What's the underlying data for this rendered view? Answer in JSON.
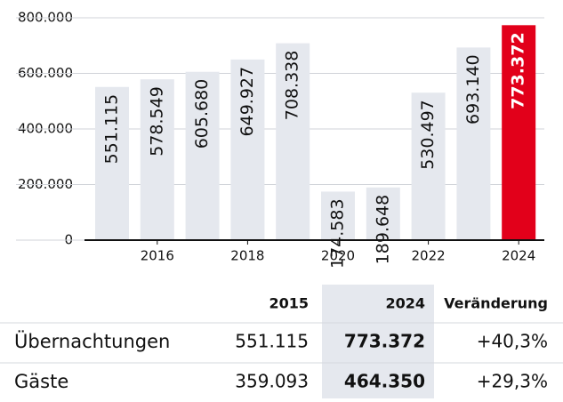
{
  "chart_data": {
    "type": "bar",
    "categories": [
      null,
      "2016",
      null,
      "2018",
      null,
      "2020",
      null,
      "2022",
      null,
      "2024"
    ],
    "values": [
      551115,
      578549,
      605680,
      649927,
      708338,
      174583,
      189648,
      530497,
      693140,
      773372
    ],
    "value_labels": [
      "551.115",
      "578.549",
      "605.680",
      "649.927",
      "708.338",
      "174.583",
      "189.648",
      "530.497",
      "693.140",
      "773.372"
    ],
    "colors": [
      "#e5e8ee",
      "#e5e8ee",
      "#e5e8ee",
      "#e5e8ee",
      "#e5e8ee",
      "#e5e8ee",
      "#e5e8ee",
      "#e5e8ee",
      "#e5e8ee",
      "#e2001a"
    ],
    "ylim": [
      0,
      800000
    ],
    "yticks": [
      0,
      {
        "value": 200000,
        "label": "200.000"
      },
      {
        "value": 400000,
        "label": "400.000"
      },
      {
        "value": 600000,
        "label": "600.000"
      },
      {
        "value": 800000,
        "label": "800.000"
      }
    ],
    "grid": true
  },
  "table": {
    "columns": [
      "2015",
      "2024",
      "Veränderung"
    ],
    "rows": [
      [
        "Übernachtungen",
        "551.115",
        "773.372",
        "+40,3%"
      ],
      [
        "Gäste",
        "359.093",
        "464.350",
        "+29,3%"
      ]
    ]
  }
}
